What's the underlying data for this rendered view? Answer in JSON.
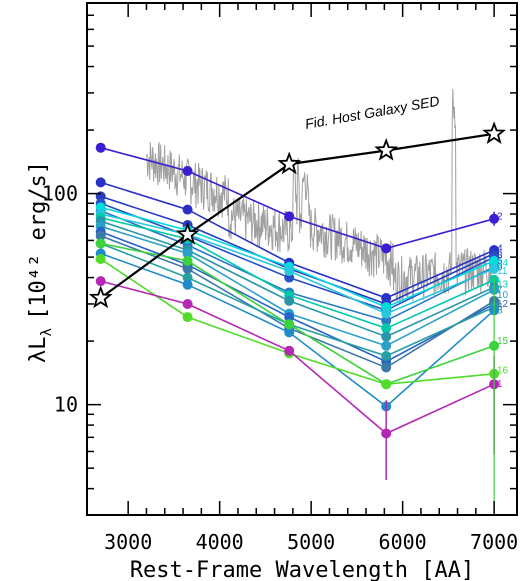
{
  "chart_data": {
    "type": "line",
    "xlabel": "Rest-Frame Wavelength [AA]",
    "ylabel": "λL",
    "ylabel_sub": "λ",
    "ylabel_units": "[10⁴² erg/s]",
    "xlim": [
      2550,
      7250
    ],
    "ylim": [
      3,
      800
    ],
    "y_scale": "log",
    "x_ticks": [
      3000,
      4000,
      5000,
      6000,
      7000
    ],
    "x_tick_labels": [
      "3000",
      "4000",
      "5000",
      "6000",
      "7000"
    ],
    "y_ticks": [
      10,
      100
    ],
    "y_tick_labels": [
      "10",
      "100"
    ],
    "grid": false,
    "x": [
      2700,
      3650,
      4760,
      5820,
      7000
    ],
    "host_sed": {
      "label": "Fid. Host Galaxy SED",
      "x": [
        2700,
        3650,
        4760,
        5820,
        7000
      ],
      "y": [
        32,
        64,
        138,
        160,
        192
      ],
      "color": "#000000"
    },
    "series": [
      {
        "label": "2",
        "color": "#3c1ed2",
        "y": [
          165,
          128,
          78,
          55,
          76
        ],
        "err": [
          3,
          3,
          3,
          3,
          7
        ]
      },
      {
        "label": "4",
        "color": "#2830c8",
        "y": [
          113,
          84,
          47,
          32,
          54
        ],
        "err": [
          3,
          3,
          3,
          3,
          5
        ]
      },
      {
        "label": "3",
        "color": "#283cbe",
        "y": [
          97,
          71,
          44,
          30,
          52
        ],
        "err": [
          3,
          3,
          3,
          3,
          5
        ]
      },
      {
        "label": "5",
        "color": "#2850c8",
        "y": [
          90,
          63,
          40,
          28,
          50
        ],
        "err": [
          3,
          3,
          3,
          3,
          5
        ]
      },
      {
        "label": "9",
        "color": "#2878c8",
        "y": [
          83,
          57,
          34,
          25,
          45
        ],
        "err": [
          3,
          3,
          3,
          3,
          5
        ]
      },
      {
        "label": "14",
        "color": "#00dcdc",
        "y": [
          86,
          67,
          45,
          29,
          48
        ],
        "err": [
          3,
          3,
          3,
          3,
          5
        ]
      },
      {
        "label": "11",
        "color": "#28c8dc",
        "y": [
          80,
          64,
          43,
          27,
          44
        ],
        "err": [
          3,
          3,
          3,
          3,
          5
        ]
      },
      {
        "label": "13",
        "color": "#00c8aa",
        "y": [
          77,
          61,
          33,
          23,
          39
        ],
        "err": [
          3,
          3,
          3,
          3,
          5
        ]
      },
      {
        "label": "7",
        "color": "#2896aa",
        "y": [
          74,
          54,
          31,
          21,
          36
        ],
        "err": [
          3,
          3,
          3,
          3,
          5
        ]
      },
      {
        "label": "10",
        "color": "#28a0c8",
        "y": [
          70,
          52,
          27,
          19,
          35
        ],
        "err": [
          3,
          3,
          3,
          3,
          5
        ]
      },
      {
        "label": "12",
        "color": "#2864c8",
        "y": [
          66,
          46,
          26,
          16,
          30
        ],
        "err": [
          3,
          3,
          3,
          3,
          4
        ]
      },
      {
        "label": "6",
        "color": "#3c78aa",
        "y": [
          63,
          44,
          23,
          15,
          31
        ],
        "err": [
          3,
          3,
          3,
          3,
          4
        ]
      },
      {
        "label": "8",
        "color": "#28a0a0",
        "y": [
          58,
          40,
          24,
          17,
          29
        ],
        "err": [
          3,
          3,
          3,
          3,
          4
        ]
      },
      {
        "label": "17",
        "color": "#1e8cc8",
        "y": [
          52,
          37,
          22,
          9.8,
          28
        ],
        "err": [
          3,
          3,
          3,
          3,
          4
        ]
      },
      {
        "label": "15",
        "color": "#3cd23c",
        "y": [
          58,
          48,
          24,
          12.5,
          19
        ],
        "err": [
          3,
          3,
          3,
          3,
          3
        ]
      },
      {
        "label": "16",
        "color": "#50dc28",
        "y": [
          49,
          26,
          17.5,
          12.5,
          14
        ],
        "err": [
          3,
          3,
          3,
          3,
          3
        ]
      },
      {
        "label": "1",
        "color": "#b428b4",
        "y": [
          38.5,
          30,
          18,
          7.3,
          12.5
        ],
        "err": [
          3,
          3,
          3,
          3,
          3
        ]
      }
    ],
    "label_order": [
      "2",
      "4",
      "3",
      "5",
      "9",
      "14",
      "11",
      "13",
      "7",
      "10",
      "12",
      "6",
      "8",
      "15",
      "16",
      "1"
    ],
    "label_y": [
      78,
      55,
      51,
      48,
      45,
      47,
      43,
      37,
      35,
      33,
      30,
      29,
      28,
      20,
      14.5,
      12.5
    ]
  }
}
